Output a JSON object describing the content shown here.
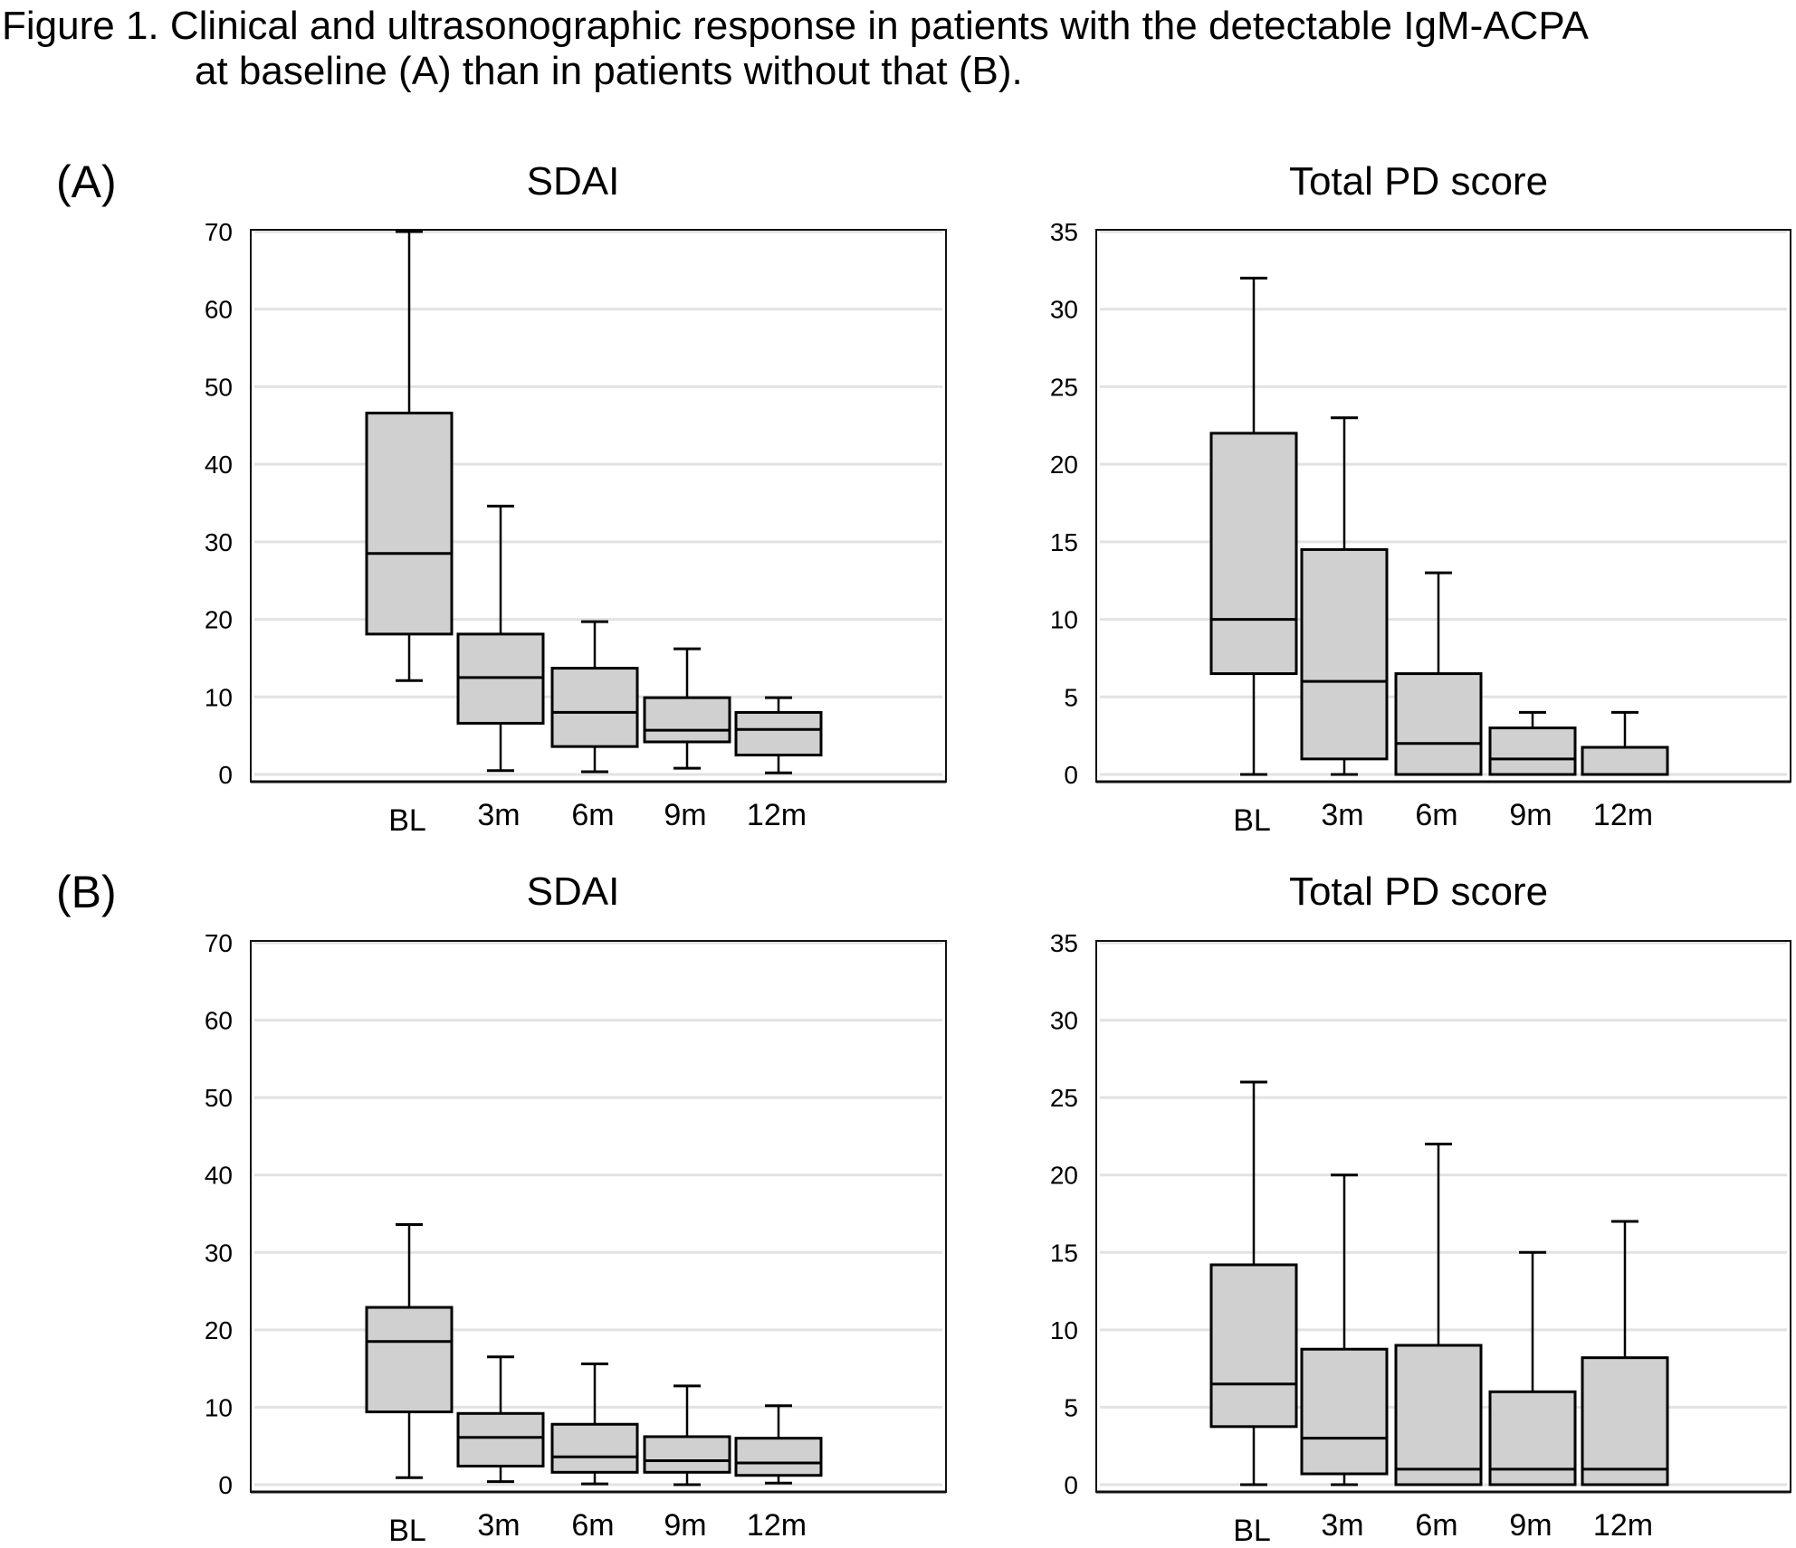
{
  "caption": {
    "line1": "Figure 1. Clinical and ultrasonographic response in patients with the detectable IgM-ACPA",
    "line2": "at baseline (A) than in patients without that (B)."
  },
  "panel_labels": [
    "(A)",
    "(B)"
  ],
  "chart_data": [
    {
      "type": "box",
      "group": "(A)",
      "title": "SDAI",
      "xlabel": "",
      "ylabel": "",
      "categories": [
        "BL",
        "3m",
        "6m",
        "9m",
        "12m"
      ],
      "ylim": [
        0,
        70
      ],
      "yticks": [
        0,
        10,
        20,
        30,
        40,
        50,
        60,
        70
      ],
      "grid": true,
      "box_color": "#d0d0d0",
      "boxes": [
        {
          "min": 12.1,
          "q1": 18.1,
          "median": 28.5,
          "q3": 46.6,
          "max": 70.0
        },
        {
          "min": 0.5,
          "q1": 6.6,
          "median": 12.5,
          "q3": 18.1,
          "max": 34.6
        },
        {
          "min": 0.35,
          "q1": 3.6,
          "median": 8.0,
          "q3": 13.7,
          "max": 19.7
        },
        {
          "min": 0.8,
          "q1": 4.2,
          "median": 5.7,
          "q3": 9.9,
          "max": 16.2
        },
        {
          "min": 0.2,
          "q1": 2.5,
          "median": 5.8,
          "q3": 8.0,
          "max": 9.9
        }
      ]
    },
    {
      "type": "box",
      "group": "(A)",
      "title": "Total PD score",
      "xlabel": "",
      "ylabel": "",
      "categories": [
        "BL",
        "3m",
        "6m",
        "9m",
        "12m"
      ],
      "ylim": [
        0,
        35
      ],
      "yticks": [
        0,
        5,
        10,
        15,
        20,
        25,
        30,
        35
      ],
      "grid": true,
      "box_color": "#d0d0d0",
      "boxes": [
        {
          "min": 0,
          "q1": 6.5,
          "median": 10.0,
          "q3": 22.0,
          "max": 32.0
        },
        {
          "min": 0,
          "q1": 1.0,
          "median": 6.0,
          "q3": 14.5,
          "max": 23.0
        },
        {
          "min": 0,
          "q1": 0,
          "median": 2.0,
          "q3": 6.5,
          "max": 13.0
        },
        {
          "min": 0,
          "q1": 0,
          "median": 1.0,
          "q3": 3.0,
          "max": 4.0
        },
        {
          "min": 0,
          "q1": 0,
          "median": 0,
          "q3": 1.75,
          "max": 4.0
        }
      ]
    },
    {
      "type": "box",
      "group": "(B)",
      "title": "SDAI",
      "xlabel": "",
      "ylabel": "",
      "categories": [
        "BL",
        "3m",
        "6m",
        "9m",
        "12m"
      ],
      "ylim": [
        0,
        70
      ],
      "yticks": [
        0,
        10,
        20,
        30,
        40,
        50,
        60,
        70
      ],
      "grid": true,
      "box_color": "#d0d0d0",
      "boxes": [
        {
          "min": 0.9,
          "q1": 9.4,
          "median": 18.5,
          "q3": 22.9,
          "max": 33.6
        },
        {
          "min": 0.4,
          "q1": 2.4,
          "median": 6.1,
          "q3": 9.2,
          "max": 16.5
        },
        {
          "min": 0.1,
          "q1": 1.6,
          "median": 3.6,
          "q3": 7.8,
          "max": 15.6
        },
        {
          "min": 0.0,
          "q1": 1.6,
          "median": 3.1,
          "q3": 6.2,
          "max": 12.75
        },
        {
          "min": 0.2,
          "q1": 1.2,
          "median": 2.8,
          "q3": 6.0,
          "max": 10.2
        }
      ]
    },
    {
      "type": "box",
      "group": "(B)",
      "title": "Total PD score",
      "xlabel": "",
      "ylabel": "",
      "categories": [
        "BL",
        "3m",
        "6m",
        "9m",
        "12m"
      ],
      "ylim": [
        0,
        35
      ],
      "yticks": [
        0,
        5,
        10,
        15,
        20,
        25,
        30,
        35
      ],
      "grid": true,
      "box_color": "#d0d0d0",
      "boxes": [
        {
          "min": 0,
          "q1": 3.75,
          "median": 6.5,
          "q3": 14.2,
          "max": 26.0
        },
        {
          "min": 0,
          "q1": 0.7,
          "median": 3.0,
          "q3": 8.75,
          "max": 20.0
        },
        {
          "min": 0,
          "q1": 0,
          "median": 1.0,
          "q3": 9.0,
          "max": 22.0
        },
        {
          "min": 0,
          "q1": 0,
          "median": 1.0,
          "q3": 6.0,
          "max": 15.0
        },
        {
          "min": 0,
          "q1": 0,
          "median": 1.0,
          "q3": 8.2,
          "max": 17.0
        }
      ]
    }
  ]
}
